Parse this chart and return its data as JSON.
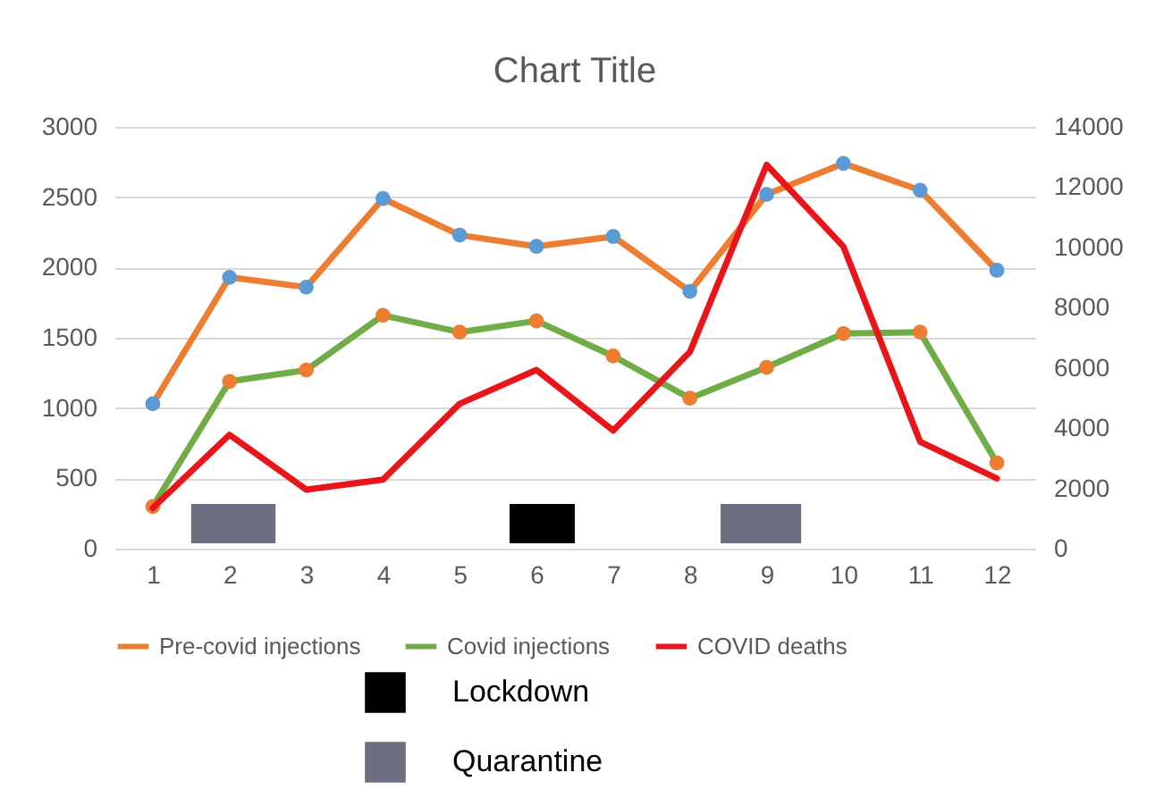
{
  "chart_data": {
    "type": "line",
    "title": "Chart Title",
    "x": [
      1,
      2,
      3,
      4,
      5,
      6,
      7,
      8,
      9,
      10,
      11,
      12
    ],
    "xlim": [
      0.5,
      12.5
    ],
    "xticks": [
      1,
      2,
      3,
      4,
      5,
      6,
      7,
      8,
      9,
      10,
      11,
      12
    ],
    "ylim": [
      0,
      3000
    ],
    "yticks": [
      0,
      500,
      1000,
      1500,
      2000,
      2500,
      3000
    ],
    "y2lim": [
      0,
      14000
    ],
    "y2ticks": [
      0,
      2000,
      4000,
      6000,
      8000,
      10000,
      12000,
      14000
    ],
    "grid": "y",
    "legend": "bottom",
    "line_style": "solid",
    "series": [
      {
        "name": "Pre-covid injections",
        "color": "#ed7d31",
        "marker": "circle",
        "colors": [
          "#5b9bd5",
          "#5b9bd5",
          "#5b9bd5",
          "#5b9bd5",
          "#5b9bd5",
          "#5b9bd5",
          "#5b9bd5",
          "#5b9bd5",
          "#5b9bd5",
          "#5b9bd5",
          "#5b9bd5",
          "#5b9bd5"
        ],
        "values": [
          1030,
          1930,
          1860,
          2490,
          2230,
          2150,
          2220,
          1830,
          2520,
          2740,
          2550,
          1980
        ]
      },
      {
        "name": "Covid injections",
        "color": "#70ad47",
        "marker": "circle",
        "colors": [
          "#ed7d31",
          "#ed7d31",
          "#ed7d31",
          "#ed7d31",
          "#ed7d31",
          "#ed7d31",
          "#ed7d31",
          "#ed7d31",
          "#ed7d31",
          "#ed7d31",
          "#ed7d31",
          "#ed7d31"
        ],
        "values": [
          300,
          1190,
          1270,
          1660,
          1540,
          1620,
          1370,
          1070,
          1290,
          1530,
          1540,
          610
        ]
      },
      {
        "name": "COVID deaths",
        "color": "#e8161b",
        "marker": "none",
        "axis": "y2",
        "values": [
          1350,
          3780,
          1960,
          2290,
          4810,
          5930,
          3920,
          6530,
          12740,
          10030,
          3550,
          2330
        ]
      }
    ],
    "bands": [
      {
        "axis": "x",
        "from": 5.65,
        "to": 6.5,
        "label": "Lockdown",
        "color": "#000000"
      },
      {
        "axis": "x",
        "from": 1.5,
        "to": 2.6,
        "label": "Quarantine",
        "color": "#6b6f80"
      },
      {
        "axis": "x",
        "from": 8.4,
        "to": 9.45,
        "color": "#6b6f80"
      }
    ]
  }
}
